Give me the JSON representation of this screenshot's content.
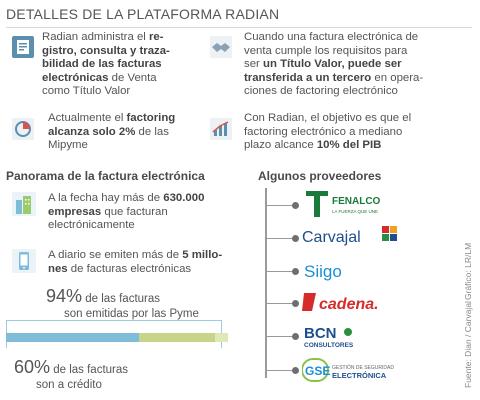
{
  "title": "DETALLES DE LA PLATAFORMA RADIAN",
  "blocks": [
    {
      "icon": "document-list-icon",
      "l1": "Radian administra el ",
      "l1b": "re-",
      "l2": "gistro, consulta y traza-",
      "l3": "bilidad de las facturas",
      "l4a": "electrónicas",
      "l4": " de Venta",
      "l5": "como Título Valor"
    },
    {
      "icon": "handshake-icon",
      "l1": "Cuando una factura electrónica de",
      "l2": "venta cumple los requisitos para",
      "l3a": "ser ",
      "l3b": "un Título Valor, puede ser",
      "l4b": "transferida a un tercero",
      "l4": " en opera-",
      "l5": "ciones de factoring electrónico"
    },
    {
      "icon": "pie-chart-icon",
      "l1": "Actualmente el ",
      "l1b": "factoring",
      "l2b": "alcanza solo 2%",
      "l2": " de las",
      "l3": "Mipyme"
    },
    {
      "icon": "bar-chart-icon",
      "l1": "Con Radian, el objetivo es que el",
      "l2": "factoring electrónico a mediano",
      "l3a": "plazo alcance ",
      "l3b": "10% del PIB"
    }
  ],
  "panorama": {
    "heading": "Panorama de la factura electrónica",
    "item1": {
      "l1": "A la fecha hay más de ",
      "l1b": "630.000",
      "l2b": "empresas",
      "l2": " que facturan",
      "l3": "electrónicamente"
    },
    "item2": {
      "l1": "A diario se emiten más de ",
      "l1b": "5 millo-",
      "l2b": "nes",
      "l2": " de facturas electrónicas"
    },
    "pyme_pct": "94%",
    "pyme_text": " de las facturas",
    "pyme_line2": "son emitidas por las Pyme",
    "credit_pct": "60%",
    "credit_text": " de las facturas",
    "credit_line2": "son a crédito"
  },
  "bar": {
    "pyme_fraction": 0.94,
    "credit_fraction": 0.6
  },
  "providers": {
    "heading": "Algunos proveedores",
    "logos": [
      {
        "name": "FENALCO",
        "tagline": "LA FUERZA QUE UNE",
        "color": "#1a7a3a"
      },
      {
        "name": "Carvajal",
        "color": "#1f4e8c"
      },
      {
        "name": "Siigo",
        "color": "#1a8fd6"
      },
      {
        "name": "cadena.",
        "color": "#d62b2b"
      },
      {
        "name": "BCN",
        "sub": "CONSULTORES",
        "color": "#1f4e8c"
      },
      {
        "name": "GSE",
        "sub1": "GESTIÓN DE SEGURIDAD",
        "sub2": "ELECTRÓNICA",
        "color": "#1a8fd6"
      }
    ]
  },
  "credits": {
    "source": "Fuente: Dian / Carvajal",
    "graphic": "Gráfico: LR/LM"
  }
}
